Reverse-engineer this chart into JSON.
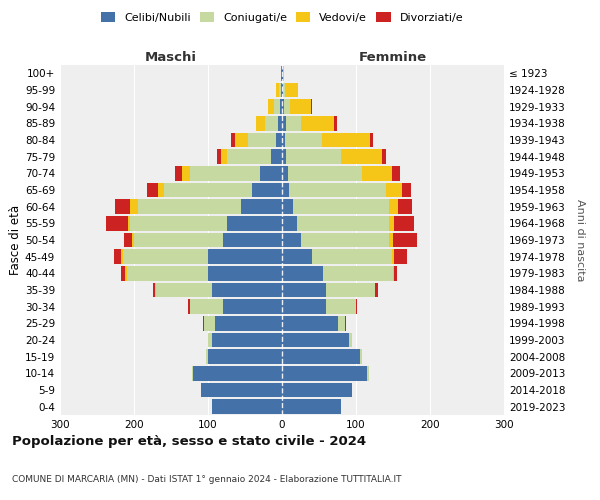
{
  "age_groups": [
    "0-4",
    "5-9",
    "10-14",
    "15-19",
    "20-24",
    "25-29",
    "30-34",
    "35-39",
    "40-44",
    "45-49",
    "50-54",
    "55-59",
    "60-64",
    "65-69",
    "70-74",
    "75-79",
    "80-84",
    "85-89",
    "90-94",
    "95-99",
    "100+"
  ],
  "birth_years": [
    "2019-2023",
    "2014-2018",
    "2009-2013",
    "2004-2008",
    "1999-2003",
    "1994-1998",
    "1989-1993",
    "1984-1988",
    "1979-1983",
    "1974-1978",
    "1969-1973",
    "1964-1968",
    "1959-1963",
    "1954-1958",
    "1949-1953",
    "1944-1948",
    "1939-1943",
    "1934-1938",
    "1929-1933",
    "1924-1928",
    "≤ 1923"
  ],
  "colors": {
    "celibi": "#4472a8",
    "coniugati": "#c5d9a0",
    "vedovi": "#f5c518",
    "divorziati": "#cc2222"
  },
  "maschi": {
    "celibi": [
      95,
      110,
      120,
      100,
      95,
      90,
      80,
      95,
      100,
      100,
      80,
      75,
      55,
      40,
      30,
      15,
      8,
      5,
      3,
      2,
      1
    ],
    "coniugati": [
      0,
      0,
      2,
      3,
      5,
      15,
      45,
      75,
      110,
      115,
      120,
      130,
      140,
      120,
      95,
      60,
      38,
      18,
      8,
      2,
      0
    ],
    "vedovi": [
      0,
      0,
      0,
      0,
      0,
      0,
      0,
      1,
      2,
      2,
      3,
      3,
      10,
      8,
      10,
      8,
      18,
      12,
      8,
      4,
      1
    ],
    "divorziati": [
      0,
      0,
      0,
      0,
      0,
      2,
      2,
      3,
      5,
      10,
      10,
      30,
      20,
      15,
      10,
      5,
      5,
      0,
      0,
      0,
      0
    ]
  },
  "femmine": {
    "celibi": [
      80,
      95,
      115,
      105,
      90,
      75,
      60,
      60,
      55,
      40,
      25,
      20,
      15,
      10,
      8,
      5,
      4,
      5,
      3,
      2,
      1
    ],
    "coniugati": [
      0,
      0,
      2,
      3,
      5,
      10,
      40,
      65,
      95,
      108,
      120,
      125,
      130,
      130,
      100,
      75,
      50,
      20,
      8,
      2,
      0
    ],
    "vedovi": [
      0,
      0,
      0,
      0,
      0,
      0,
      0,
      1,
      2,
      3,
      5,
      6,
      12,
      22,
      40,
      55,
      65,
      45,
      28,
      18,
      2
    ],
    "divorziati": [
      0,
      0,
      0,
      0,
      0,
      2,
      2,
      4,
      4,
      18,
      32,
      28,
      18,
      12,
      12,
      6,
      4,
      4,
      2,
      0,
      0
    ]
  },
  "xlim": 300,
  "title": "Popolazione per età, sesso e stato civile - 2024",
  "subtitle": "COMUNE DI MARCARIA (MN) - Dati ISTAT 1° gennaio 2024 - Elaborazione TUTTITALIA.IT",
  "xlabel_left": "Maschi",
  "xlabel_right": "Femmine",
  "ylabel": "Fasce di età",
  "ylabel_right": "Anni di nascita",
  "bg_color": "#efefef"
}
